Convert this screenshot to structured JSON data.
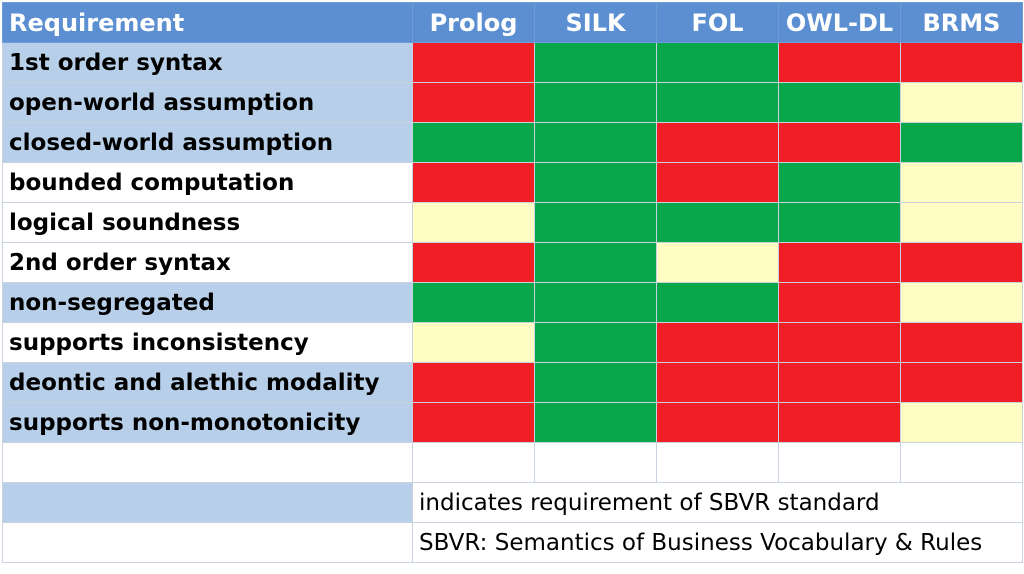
{
  "header": {
    "requirement": "Requirement",
    "systems": [
      "Prolog",
      "SILK",
      "FOL",
      "OWL-DL",
      "BRMS"
    ]
  },
  "colors": {
    "red": "#f01f25",
    "green": "#0aa64a",
    "yellow": "#fffcc4",
    "header_blue": "#5b8fd1",
    "label_shade": "#b7cfe9"
  },
  "rows": [
    {
      "label": "1st order syntax",
      "shaded": true,
      "cells": [
        "red",
        "green",
        "green",
        "red",
        "red"
      ]
    },
    {
      "label": "open-world assumption",
      "shaded": true,
      "cells": [
        "red",
        "green",
        "green",
        "green",
        "yellow"
      ]
    },
    {
      "label": "closed-world assumption",
      "shaded": true,
      "cells": [
        "green",
        "green",
        "red",
        "red",
        "green"
      ]
    },
    {
      "label": "bounded computation",
      "shaded": false,
      "cells": [
        "red",
        "green",
        "red",
        "green",
        "yellow"
      ]
    },
    {
      "label": "logical soundness",
      "shaded": false,
      "cells": [
        "yellow",
        "green",
        "green",
        "green",
        "yellow"
      ]
    },
    {
      "label": "2nd order syntax",
      "shaded": false,
      "cells": [
        "red",
        "green",
        "yellow",
        "red",
        "red"
      ]
    },
    {
      "label": "non-segregated",
      "shaded": true,
      "cells": [
        "green",
        "green",
        "green",
        "red",
        "yellow"
      ]
    },
    {
      "label": "supports inconsistency",
      "shaded": false,
      "cells": [
        "yellow",
        "green",
        "red",
        "red",
        "red"
      ]
    },
    {
      "label": "deontic and alethic modality",
      "shaded": true,
      "cells": [
        "red",
        "green",
        "red",
        "red",
        "red"
      ]
    },
    {
      "label": "supports non-monotonicity",
      "shaded": true,
      "cells": [
        "red",
        "green",
        "red",
        "red",
        "yellow"
      ]
    }
  ],
  "legend": {
    "indicates": "indicates requirement of SBVR standard",
    "sbvr": "SBVR: Semantics of Business Vocabulary & Rules"
  }
}
